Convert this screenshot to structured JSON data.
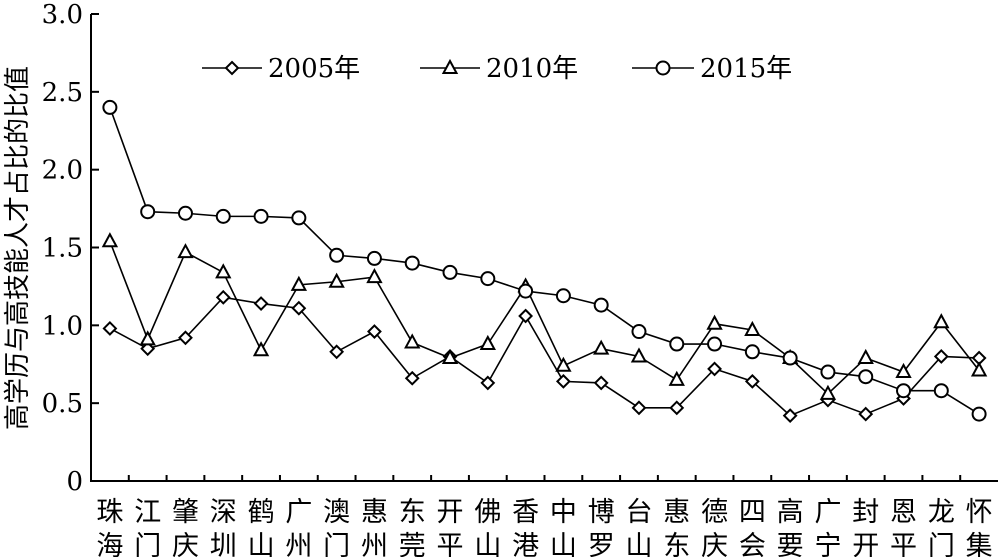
{
  "chart_data": {
    "type": "line",
    "ylabel": "高学历与高技能人才占比的比值",
    "ylim": [
      0,
      3.0
    ],
    "yticks": [
      "0",
      "0.5",
      "1.0",
      "1.5",
      "2.0",
      "2.5",
      "3.0"
    ],
    "categories": [
      [
        "珠",
        "海"
      ],
      [
        "江",
        "门"
      ],
      [
        "肇",
        "庆"
      ],
      [
        "深",
        "圳"
      ],
      [
        "鹤",
        "山"
      ],
      [
        "广",
        "州"
      ],
      [
        "澳",
        "门"
      ],
      [
        "惠",
        "州"
      ],
      [
        "东",
        "莞"
      ],
      [
        "开",
        "平"
      ],
      [
        "佛",
        "山"
      ],
      [
        "香",
        "港"
      ],
      [
        "中",
        "山"
      ],
      [
        "博",
        "罗"
      ],
      [
        "台",
        "山"
      ],
      [
        "惠",
        "东"
      ],
      [
        "德",
        "庆"
      ],
      [
        "四",
        "会"
      ],
      [
        "高",
        "要"
      ],
      [
        "广",
        "宁"
      ],
      [
        "封",
        "开"
      ],
      [
        "恩",
        "平"
      ],
      [
        "龙",
        "门"
      ],
      [
        "怀",
        "集"
      ]
    ],
    "series": [
      {
        "name": "2005年",
        "marker": "diamond",
        "values": [
          0.98,
          0.85,
          0.92,
          1.18,
          1.14,
          1.11,
          0.83,
          0.96,
          0.66,
          0.8,
          0.63,
          1.06,
          0.64,
          0.63,
          0.47,
          0.47,
          0.72,
          0.64,
          0.42,
          0.52,
          0.43,
          0.53,
          0.8,
          0.79
        ]
      },
      {
        "name": "2010年",
        "marker": "triangle",
        "values": [
          1.54,
          0.91,
          1.47,
          1.34,
          0.84,
          1.26,
          1.28,
          1.31,
          0.89,
          0.79,
          0.88,
          1.25,
          0.74,
          0.85,
          0.8,
          0.65,
          1.01,
          0.97,
          0.79,
          0.56,
          0.79,
          0.7,
          1.02,
          0.71
        ]
      },
      {
        "name": "2015年",
        "marker": "circle",
        "values": [
          2.4,
          1.73,
          1.72,
          1.7,
          1.7,
          1.69,
          1.45,
          1.43,
          1.4,
          1.34,
          1.3,
          1.22,
          1.19,
          1.13,
          0.96,
          0.88,
          0.88,
          0.83,
          0.79,
          0.7,
          0.67,
          0.58,
          0.58,
          0.43
        ]
      }
    ],
    "legend_position": "top-center",
    "grid": false
  }
}
